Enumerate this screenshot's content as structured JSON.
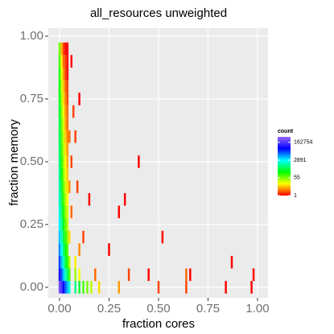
{
  "chart_data": {
    "type": "bin2d",
    "title": "all_resources  unweighted",
    "x_label": "fraction cores",
    "y_label": "fraction memory",
    "binwidth": [
      0.01,
      0.05
    ],
    "x": [
      0,
      0,
      0,
      0,
      0,
      0,
      0,
      0,
      0,
      0,
      0,
      0,
      0,
      0,
      0,
      0,
      0,
      0,
      0,
      0,
      0.01,
      0.01,
      0.01,
      0.01,
      0.01,
      0.01,
      0.01,
      0.01,
      0.01,
      0.01,
      0.01,
      0.01,
      0.01,
      0.01,
      0.01,
      0.01,
      0.01,
      0.01,
      0.01,
      0.01,
      0.02,
      0.02,
      0.02,
      0.02,
      0.02,
      0.02,
      0.02,
      0.02,
      0.02,
      0.02,
      0.02,
      0.02,
      0.02,
      0.02,
      0.02,
      0.02,
      0.02,
      0.02,
      0.02,
      0.02,
      0.03,
      0.03,
      0.03,
      0.03,
      0.03,
      0.03,
      0.03,
      0.03,
      0.03,
      0.03,
      0.03,
      0.03,
      0.03,
      0.03,
      0.03,
      0.03,
      0.03,
      0.03,
      0.03,
      0.03,
      0.04,
      0.04,
      0.04,
      0.04,
      0.04,
      0.04,
      0.04,
      0.04,
      0.04,
      0.04,
      0.04,
      0.04,
      0.04,
      0.04,
      0.04,
      0.04,
      0.04,
      0.04,
      0.04,
      0.04,
      0.08,
      0.08,
      0.08,
      0.1,
      0.1,
      0.1,
      0.06,
      0.06,
      0.07,
      0.09,
      0.12,
      0.12,
      0.14,
      0.15,
      0.16,
      0.18,
      0.2,
      0.25,
      0.3,
      0.3,
      0.33,
      0.35,
      0.4,
      0.45,
      0.5,
      0.52,
      0.64,
      0.64,
      0.66,
      0.84,
      0.87,
      0.97,
      0.98,
      0.06,
      0.1,
      0.08,
      0.05,
      0.05,
      0.05,
      0.05,
      0.05,
      0.05
    ],
    "y": [
      0,
      0.05,
      0.1,
      0.15,
      0.2,
      0.25,
      0.3,
      0.35,
      0.4,
      0.45,
      0.5,
      0.55,
      0.6,
      0.65,
      0.7,
      0.75,
      0.8,
      0.85,
      0.9,
      0.95,
      0,
      0.05,
      0.1,
      0.15,
      0.2,
      0.25,
      0.3,
      0.35,
      0.4,
      0.45,
      0.5,
      0.55,
      0.6,
      0.65,
      0.7,
      0.75,
      0.8,
      0.85,
      0.9,
      0.95,
      0,
      0.05,
      0.1,
      0.15,
      0.2,
      0.25,
      0.3,
      0.35,
      0.4,
      0.45,
      0.5,
      0.55,
      0.6,
      0.65,
      0.7,
      0.75,
      0.8,
      0.85,
      0.9,
      0.95,
      0,
      0.05,
      0.1,
      0.15,
      0.2,
      0.25,
      0.3,
      0.35,
      0.4,
      0.45,
      0.5,
      0.55,
      0.6,
      0.65,
      0.7,
      0.75,
      0.8,
      0.85,
      0.9,
      0.95,
      0,
      0.05,
      0.1,
      0.15,
      0.2,
      0.25,
      0.3,
      0.35,
      0.4,
      0.45,
      0.5,
      0.55,
      0.6,
      0.65,
      0.7,
      0.75,
      0.8,
      0.85,
      0.9,
      0.95,
      0,
      0.05,
      0.1,
      0,
      0.05,
      0.15,
      0.3,
      0.5,
      0.7,
      0.4,
      0,
      0.2,
      0,
      0.35,
      0,
      0.05,
      0,
      0.15,
      0,
      0.3,
      0.35,
      0.05,
      0.5,
      0.05,
      0,
      0.2,
      0.05,
      0,
      0.05,
      0,
      0.1,
      0,
      0.05,
      0.9,
      0.75,
      0.6,
      0,
      0.05,
      0.1,
      0.2,
      0.4,
      0.6
    ],
    "values": [
      300000,
      60000,
      20000,
      9000,
      5000,
      3000,
      2000,
      1500,
      1200,
      900,
      700,
      600,
      500,
      400,
      300,
      250,
      200,
      150,
      100,
      60,
      120000,
      20000,
      6000,
      3000,
      1500,
      900,
      600,
      400,
      300,
      200,
      150,
      120,
      100,
      80,
      60,
      40,
      30,
      20,
      12,
      6,
      40000,
      5000,
      1500,
      700,
      400,
      250,
      150,
      100,
      70,
      50,
      40,
      30,
      25,
      20,
      15,
      10,
      8,
      5,
      3,
      2,
      15000,
      1500,
      400,
      200,
      120,
      80,
      50,
      35,
      25,
      18,
      14,
      10,
      8,
      6,
      5,
      4,
      3,
      2,
      2,
      1,
      6000,
      500,
      150,
      80,
      50,
      30,
      20,
      14,
      10,
      8,
      6,
      5,
      4,
      3,
      3,
      2,
      2,
      1,
      1,
      1,
      800,
      40,
      12,
      300,
      15,
      4,
      3,
      2,
      2,
      2,
      100,
      2,
      60,
      1,
      30,
      3,
      10,
      1,
      5,
      1,
      1,
      2,
      1,
      1,
      2,
      1,
      3,
      2,
      1,
      1,
      1,
      1,
      1,
      1,
      1,
      2,
      2000,
      100,
      30,
      10,
      5,
      3
    ],
    "xlim": [
      -0.057,
      1.053
    ],
    "ylim": [
      -0.042,
      1.032
    ],
    "xticks": [
      {
        "value": 0,
        "label": "0.00"
      },
      {
        "value": 0.25,
        "label": "0.25"
      },
      {
        "value": 0.5,
        "label": "0.50"
      },
      {
        "value": 0.75,
        "label": "0.75"
      },
      {
        "value": 1,
        "label": "1.00"
      }
    ],
    "yticks": [
      {
        "value": 0,
        "label": "0.00"
      },
      {
        "value": 0.25,
        "label": "0.25"
      },
      {
        "value": 0.5,
        "label": "0.50"
      },
      {
        "value": 0.75,
        "label": "0.75"
      },
      {
        "value": 1,
        "label": "1.00"
      }
    ],
    "grid": true,
    "legend_title": "count",
    "legend_position": "right",
    "color_scale": "log",
    "clim": [
      1,
      560000
    ],
    "legend_breaks": [
      1,
      55,
      2891,
      162754
    ],
    "colors": [
      "#ff0000",
      "#ffff00",
      "#00ff00",
      "#00ffff",
      "#0000ff",
      "#9966ff"
    ]
  }
}
